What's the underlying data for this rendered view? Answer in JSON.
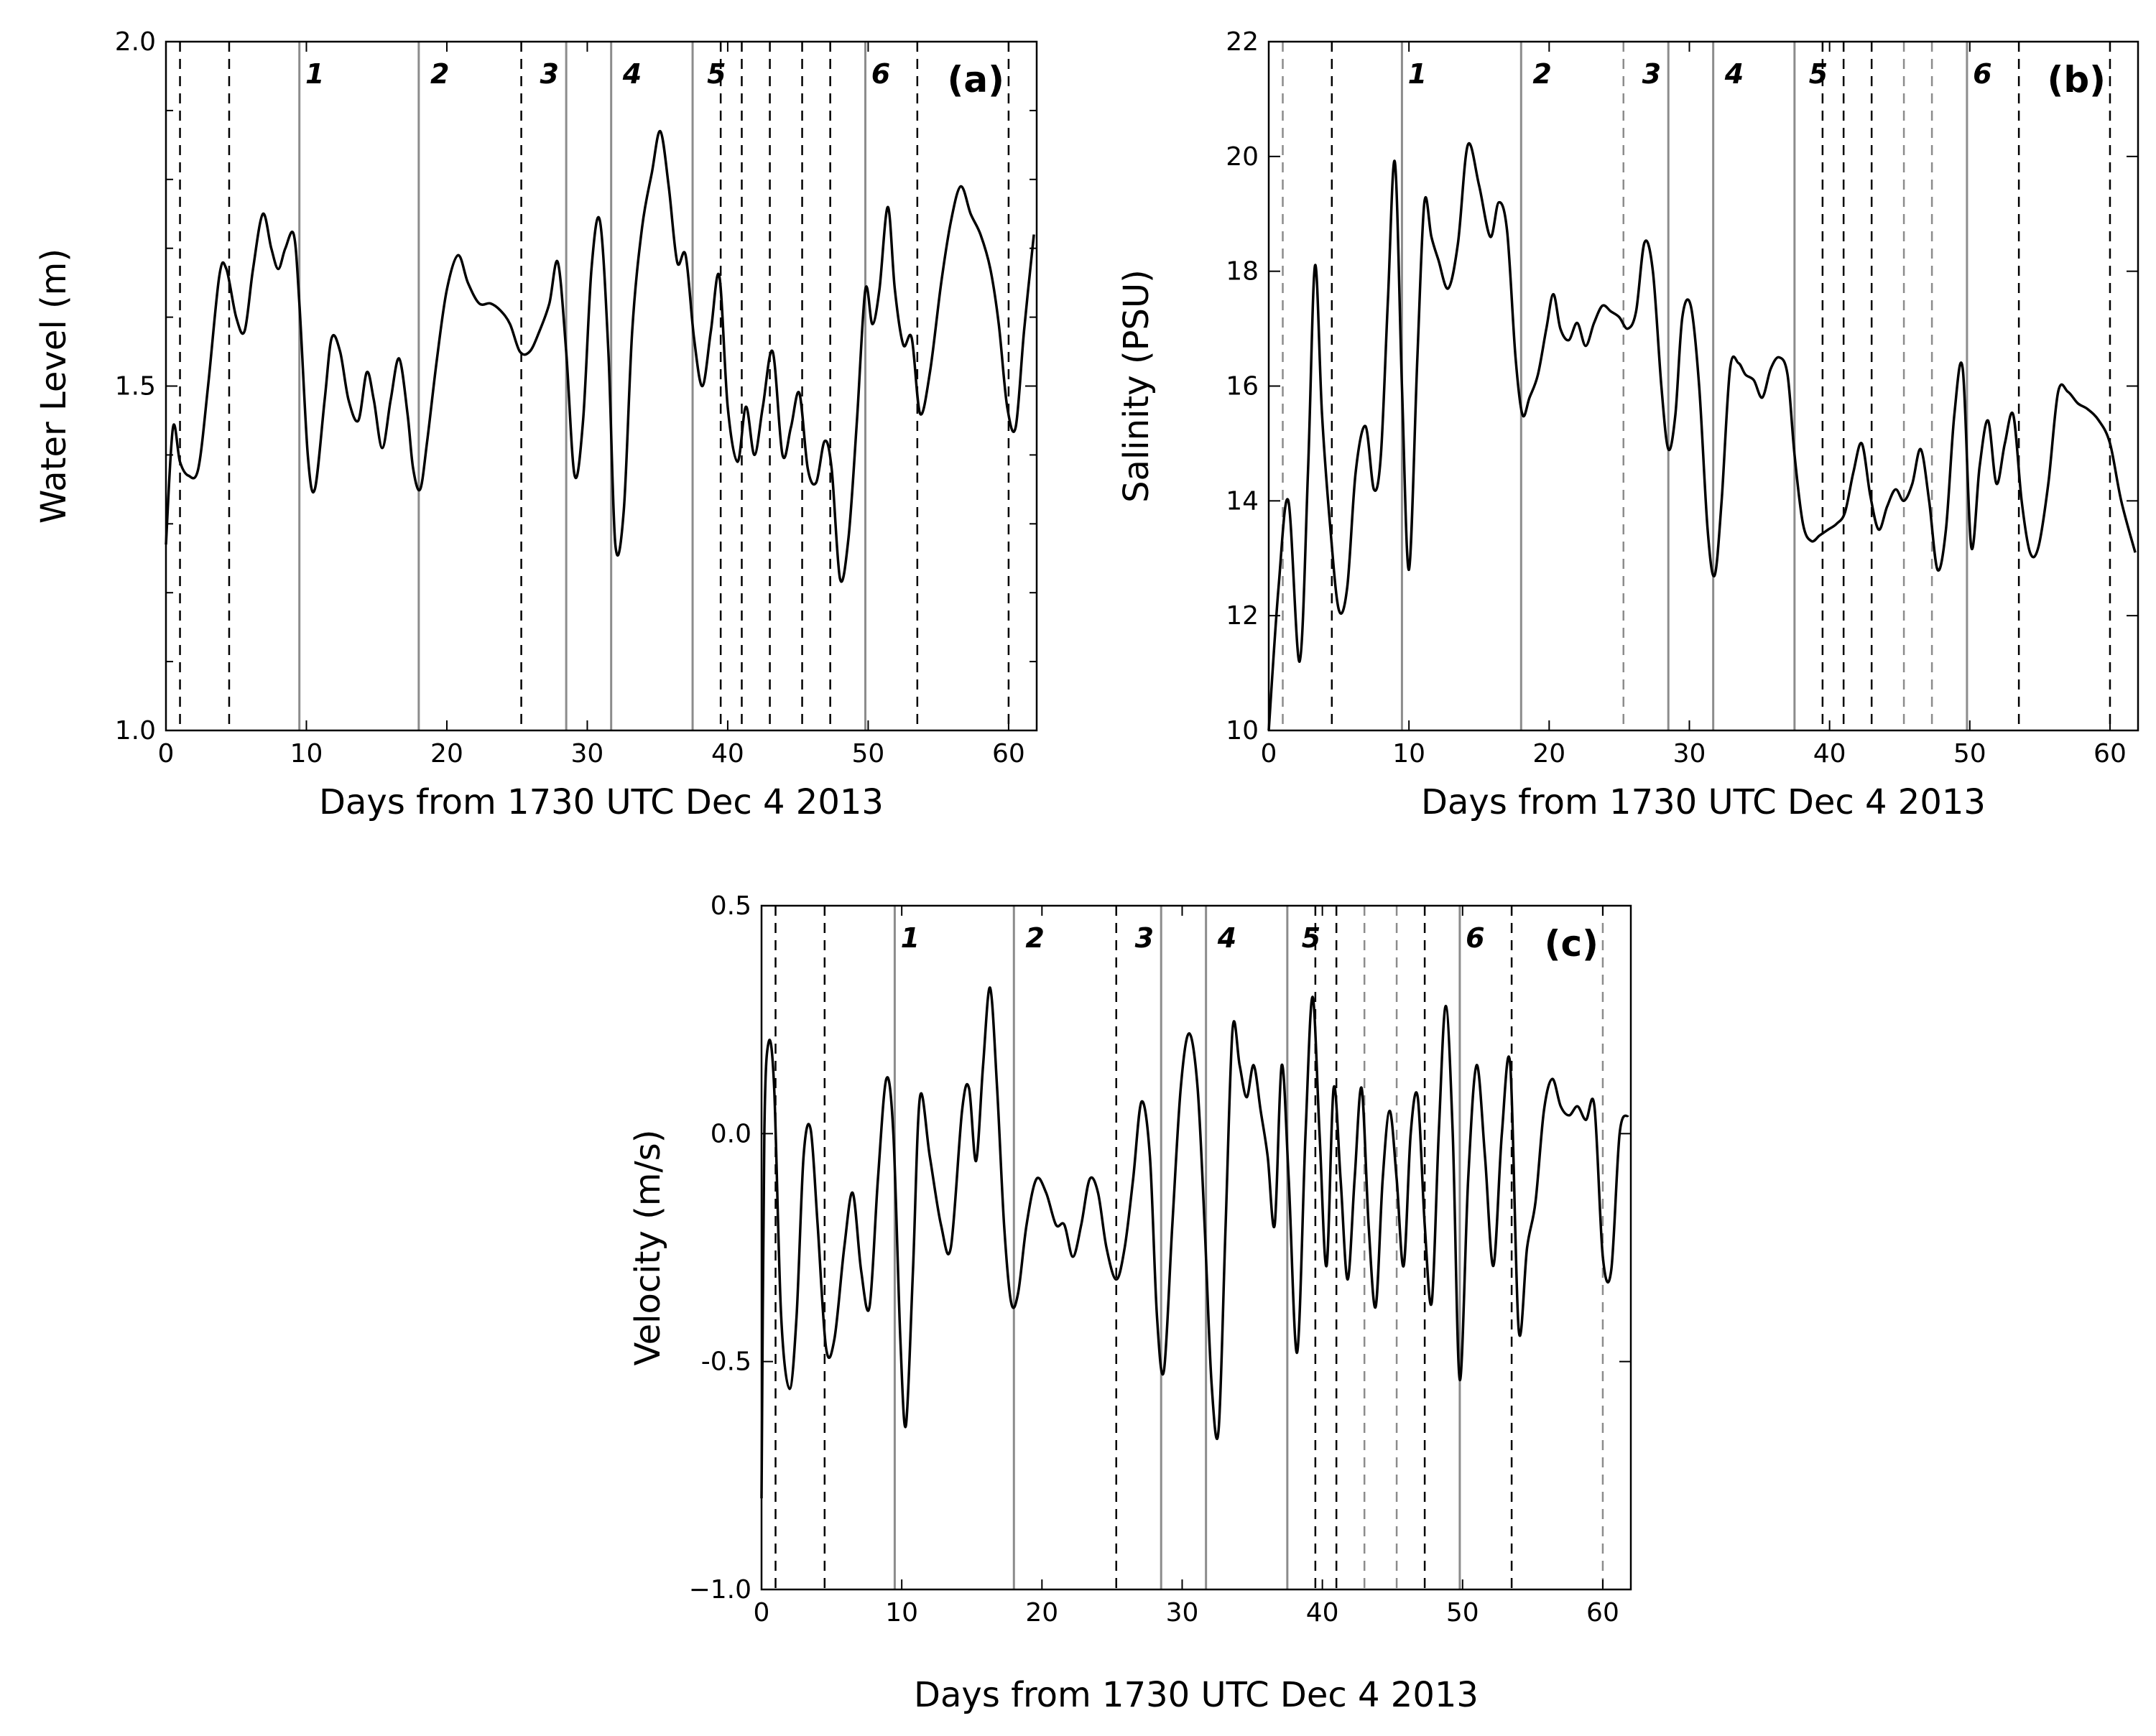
{
  "chart_data": [
    {
      "id": "a",
      "type": "line",
      "panel_label": "(a)",
      "xlabel": "Days from 1730 UTC Dec 4 2013",
      "ylabel": "Water Level (m)",
      "xlim": [
        0,
        62
      ],
      "ylim": [
        1.0,
        2.0
      ],
      "xticks": [
        0,
        10,
        20,
        30,
        40,
        50,
        60
      ],
      "yticks": [
        1.0,
        1.5,
        2.0
      ],
      "yticks_labels": [
        "1.0",
        "1.5",
        "2.0"
      ],
      "yminor": [
        1.1,
        1.2,
        1.3,
        1.4,
        1.6,
        1.7,
        1.8,
        1.9
      ],
      "solid_lines": [
        9.5,
        18,
        28.5,
        31.7,
        37.5,
        49.8
      ],
      "dashed_lines": [
        1,
        4.5,
        25.3,
        39.5,
        41,
        43,
        45.3,
        47.3,
        53.5,
        60
      ],
      "dashed_light_lines": [],
      "event_labels": [
        {
          "text": "1",
          "x": 10.6
        },
        {
          "text": "2",
          "x": 19.5
        },
        {
          "text": "3",
          "x": 27.3
        },
        {
          "text": "4",
          "x": 33.2
        },
        {
          "text": "5",
          "x": 39.2
        },
        {
          "text": "6",
          "x": 50.9
        }
      ],
      "series": [
        {
          "x": [
            0,
            0.5,
            1,
            1.6,
            2.3,
            3,
            3.8,
            4.3,
            5,
            5.6,
            6.2,
            6.9,
            7.5,
            8,
            8.5,
            9.1,
            9.5,
            10.1,
            10.6,
            11.3,
            11.8,
            12.4,
            13,
            13.7,
            14.3,
            14.8,
            15.4,
            16,
            16.6,
            17.2,
            17.6,
            18.1,
            18.6,
            19.3,
            20,
            20.8,
            21.5,
            22.3,
            23.1,
            23.8,
            24.5,
            25.2,
            25.9,
            26.6,
            27.3,
            27.9,
            28.5,
            29.1,
            29.7,
            30.3,
            30.9,
            31.5,
            32,
            32.6,
            33.2,
            33.9,
            34.6,
            35.2,
            35.8,
            36.4,
            37,
            37.6,
            38.2,
            38.8,
            39.4,
            40,
            40.7,
            41.3,
            41.9,
            42.5,
            43.2,
            43.9,
            44.5,
            45.1,
            45.7,
            46.3,
            46.9,
            47.4,
            48,
            48.6,
            49.2,
            49.8,
            50.3,
            50.8,
            51.4,
            51.9,
            52.5,
            53.1,
            53.7,
            54.4,
            55.2,
            55.9,
            56.6,
            57.3,
            58,
            58.7,
            59.3,
            59.9,
            60.5,
            61.1,
            61.8
          ],
          "y": [
            1.27,
            1.44,
            1.39,
            1.37,
            1.38,
            1.5,
            1.66,
            1.67,
            1.6,
            1.58,
            1.67,
            1.75,
            1.7,
            1.67,
            1.7,
            1.72,
            1.62,
            1.4,
            1.35,
            1.48,
            1.57,
            1.55,
            1.48,
            1.45,
            1.52,
            1.48,
            1.41,
            1.48,
            1.54,
            1.46,
            1.38,
            1.35,
            1.42,
            1.54,
            1.64,
            1.69,
            1.65,
            1.62,
            1.62,
            1.61,
            1.59,
            1.55,
            1.55,
            1.58,
            1.62,
            1.68,
            1.55,
            1.37,
            1.45,
            1.67,
            1.74,
            1.55,
            1.27,
            1.32,
            1.58,
            1.73,
            1.81,
            1.87,
            1.79,
            1.68,
            1.69,
            1.57,
            1.5,
            1.58,
            1.66,
            1.47,
            1.39,
            1.47,
            1.4,
            1.47,
            1.55,
            1.4,
            1.44,
            1.49,
            1.38,
            1.36,
            1.42,
            1.38,
            1.22,
            1.28,
            1.45,
            1.64,
            1.59,
            1.64,
            1.76,
            1.64,
            1.56,
            1.57,
            1.46,
            1.52,
            1.65,
            1.74,
            1.79,
            1.75,
            1.72,
            1.67,
            1.59,
            1.47,
            1.44,
            1.58,
            1.72
          ]
        }
      ]
    },
    {
      "id": "b",
      "type": "line",
      "panel_label": "(b)",
      "xlabel": "Days from 1730 UTC Dec 4 2013",
      "ylabel": "Salinity (PSU)",
      "xlim": [
        0,
        62
      ],
      "ylim": [
        10,
        22
      ],
      "xticks": [
        0,
        10,
        20,
        30,
        40,
        50,
        60
      ],
      "yticks": [
        10,
        12,
        14,
        16,
        18,
        20,
        22
      ],
      "yticks_labels": [
        "10",
        "12",
        "14",
        "16",
        "18",
        "20",
        "22"
      ],
      "yminor": [],
      "solid_lines": [
        9.5,
        18,
        28.5,
        31.7,
        37.5,
        49.8
      ],
      "dashed_lines": [
        4.5,
        39.5,
        41,
        43,
        53.5,
        60
      ],
      "dashed_light_lines": [
        1,
        25.3,
        45.3,
        47.3
      ],
      "event_labels": [
        {
          "text": "1",
          "x": 10.6
        },
        {
          "text": "2",
          "x": 19.5
        },
        {
          "text": "3",
          "x": 27.3
        },
        {
          "text": "4",
          "x": 33.2
        },
        {
          "text": "5",
          "x": 39.2
        },
        {
          "text": "6",
          "x": 50.9
        }
      ],
      "series": [
        {
          "x": [
            0,
            0.7,
            1.4,
            2.2,
            2.8,
            3.3,
            3.8,
            4.4,
            5,
            5.6,
            6.2,
            6.9,
            7.5,
            8,
            8.5,
            9,
            9.5,
            10,
            10.6,
            11.1,
            11.6,
            12.1,
            12.8,
            13.5,
            14.2,
            15,
            15.8,
            16.4,
            17,
            17.6,
            18.1,
            18.6,
            19.2,
            19.8,
            20.3,
            20.8,
            21.4,
            22,
            22.6,
            23.2,
            23.8,
            24.4,
            25,
            25.6,
            26.2,
            26.8,
            27.4,
            28,
            28.5,
            29,
            29.5,
            30.1,
            30.7,
            31.3,
            31.8,
            32.3,
            32.9,
            33.5,
            34,
            34.6,
            35.2,
            35.8,
            36.4,
            37,
            37.5,
            38.1,
            38.7,
            39.3,
            39.9,
            40.5,
            41.1,
            41.7,
            42.3,
            42.9,
            43.5,
            44.1,
            44.7,
            45.3,
            45.9,
            46.5,
            47.1,
            47.7,
            48.3,
            48.9,
            49.5,
            50.1,
            50.7,
            51.3,
            51.9,
            52.5,
            53.1,
            53.7,
            54.3,
            54.9,
            55.6,
            56.3,
            57,
            57.7,
            58.4,
            59.2,
            60,
            60.8,
            61.8
          ],
          "y": [
            10.0,
            12.5,
            14.0,
            11.2,
            14.5,
            18.1,
            15.5,
            13.5,
            12.1,
            12.5,
            14.5,
            15.3,
            14.2,
            14.8,
            17.5,
            19.9,
            16.0,
            12.8,
            16.5,
            19.2,
            18.6,
            18.2,
            17.7,
            18.5,
            20.2,
            19.5,
            18.6,
            19.2,
            18.7,
            16.5,
            15.5,
            15.8,
            16.2,
            17.0,
            17.6,
            17.0,
            16.8,
            17.1,
            16.7,
            17.1,
            17.4,
            17.3,
            17.2,
            17.0,
            17.3,
            18.5,
            18.0,
            16.0,
            14.9,
            15.5,
            17.2,
            17.4,
            16.0,
            13.5,
            12.7,
            14.0,
            16.3,
            16.4,
            16.2,
            16.1,
            15.8,
            16.3,
            16.5,
            16.2,
            14.8,
            13.6,
            13.3,
            13.4,
            13.5,
            13.6,
            13.8,
            14.5,
            15.0,
            14.1,
            13.5,
            13.9,
            14.2,
            14.0,
            14.3,
            14.9,
            14.0,
            12.8,
            13.5,
            15.5,
            16.3,
            13.2,
            14.6,
            15.4,
            14.3,
            15.0,
            15.5,
            14.0,
            13.1,
            13.2,
            14.3,
            15.9,
            15.9,
            15.7,
            15.6,
            15.4,
            15.0,
            14.0,
            13.1
          ]
        }
      ]
    },
    {
      "id": "c",
      "type": "line",
      "panel_label": "(c)",
      "xlabel": "Days from 1730 UTC Dec 4 2013",
      "ylabel": "Velocity (m/s)",
      "xlim": [
        0,
        62
      ],
      "ylim": [
        -1.0,
        0.5
      ],
      "xticks": [
        0,
        10,
        20,
        30,
        40,
        50,
        60
      ],
      "yticks": [
        -1.0,
        -0.5,
        0.0,
        0.5
      ],
      "yticks_labels": [
        "−1.0",
        "-0.5",
        "0.0",
        "0.5"
      ],
      "yminor": [],
      "solid_lines": [
        9.5,
        18,
        28.5,
        31.7,
        37.5,
        49.8
      ],
      "dashed_lines": [
        1,
        4.5,
        25.3,
        39.5,
        41,
        47.3,
        53.5
      ],
      "dashed_light_lines": [
        43,
        45.3,
        60
      ],
      "event_labels": [
        {
          "text": "1",
          "x": 10.6
        },
        {
          "text": "2",
          "x": 19.5
        },
        {
          "text": "3",
          "x": 27.3
        },
        {
          "text": "4",
          "x": 33.2
        },
        {
          "text": "5",
          "x": 39.2
        },
        {
          "text": "6",
          "x": 50.9
        }
      ],
      "series": [
        {
          "x": [
            0,
            0.2,
            0.5,
            0.9,
            1.4,
            2,
            2.5,
            3,
            3.5,
            4,
            4.6,
            5.2,
            5.9,
            6.5,
            7.1,
            7.7,
            8.3,
            8.9,
            9.4,
            9.9,
            10.3,
            10.8,
            11.3,
            12,
            12.8,
            13.5,
            14.3,
            14.8,
            15.3,
            15.8,
            16.3,
            16.8,
            17.3,
            17.8,
            18.3,
            18.9,
            19.6,
            20.3,
            21,
            21.6,
            22.2,
            22.8,
            23.4,
            24,
            24.6,
            25.3,
            25.9,
            26.5,
            27.1,
            27.7,
            28.2,
            28.7,
            29.3,
            29.9,
            30.5,
            31.1,
            31.6,
            32.1,
            32.6,
            33.1,
            33.6,
            34.1,
            34.6,
            35.1,
            35.6,
            36.1,
            36.6,
            37.1,
            37.6,
            38.2,
            38.8,
            39.3,
            39.8,
            40.3,
            40.8,
            41.3,
            41.8,
            42.3,
            42.8,
            43.3,
            43.8,
            44.3,
            44.8,
            45.3,
            45.8,
            46.3,
            46.8,
            47.3,
            47.8,
            48.3,
            48.8,
            49.3,
            49.8,
            50.4,
            51,
            51.6,
            52.2,
            52.8,
            53.4,
            54,
            54.6,
            55.2,
            55.8,
            56.4,
            57,
            57.6,
            58.2,
            58.8,
            59.4,
            60,
            60.6,
            61.2,
            61.8
          ],
          "y": [
            -0.8,
            0.0,
            0.2,
            0.1,
            -0.4,
            -0.56,
            -0.4,
            -0.05,
            0.01,
            -0.2,
            -0.47,
            -0.45,
            -0.25,
            -0.13,
            -0.3,
            -0.38,
            -0.1,
            0.12,
            0.0,
            -0.45,
            -0.64,
            -0.3,
            0.08,
            -0.05,
            -0.2,
            -0.25,
            0.05,
            0.1,
            -0.06,
            0.15,
            0.32,
            0.1,
            -0.2,
            -0.37,
            -0.35,
            -0.2,
            -0.1,
            -0.13,
            -0.2,
            -0.2,
            -0.27,
            -0.2,
            -0.1,
            -0.13,
            -0.25,
            -0.32,
            -0.25,
            -0.1,
            0.07,
            -0.05,
            -0.4,
            -0.52,
            -0.2,
            0.1,
            0.22,
            0.1,
            -0.2,
            -0.55,
            -0.65,
            -0.2,
            0.23,
            0.15,
            0.08,
            0.15,
            0.05,
            -0.05,
            -0.2,
            0.15,
            -0.1,
            -0.48,
            0.0,
            0.3,
            0.0,
            -0.29,
            0.1,
            -0.1,
            -0.32,
            -0.1,
            0.1,
            -0.2,
            -0.38,
            -0.1,
            0.05,
            -0.1,
            -0.29,
            0.0,
            0.08,
            -0.2,
            -0.37,
            0.0,
            0.28,
            0.0,
            -0.54,
            -0.1,
            0.15,
            -0.05,
            -0.29,
            0.0,
            0.15,
            -0.43,
            -0.25,
            -0.15,
            0.05,
            0.12,
            0.06,
            0.04,
            0.06,
            0.03,
            0.06,
            -0.27,
            -0.3,
            0.0,
            0.04
          ]
        }
      ]
    }
  ]
}
